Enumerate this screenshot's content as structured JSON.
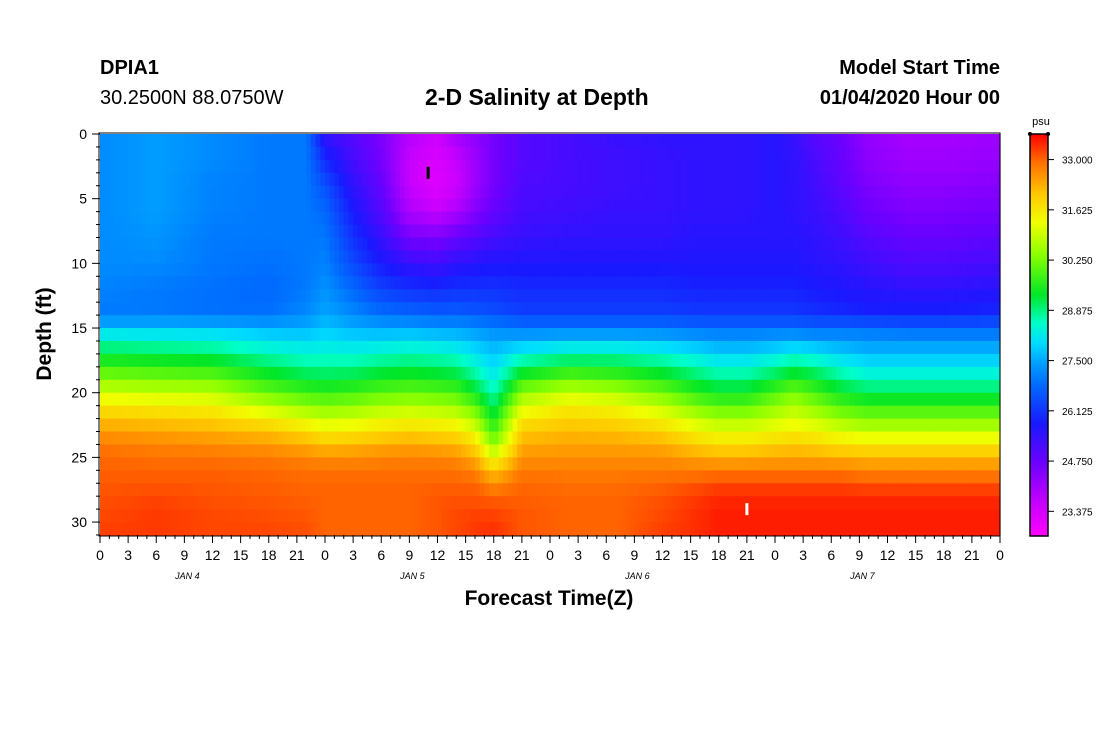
{
  "header": {
    "station_id": "DPIA1",
    "coordinates": "30.2500N 88.0750W",
    "title": "2-D Salinity at Depth",
    "model_start_label": "Model Start Time",
    "model_start_value": "01/04/2020 Hour 00"
  },
  "chart_data": {
    "type": "heatmap",
    "title": "2-D Salinity at Depth",
    "xlabel": "Forecast Time(Z)",
    "ylabel": "Depth (ft)",
    "x_tick_labels": [
      "0",
      "3",
      "6",
      "9",
      "12",
      "15",
      "18",
      "21",
      "0",
      "3",
      "6",
      "9",
      "12",
      "15",
      "18",
      "21",
      "0",
      "3",
      "6",
      "9",
      "12",
      "15",
      "18",
      "21",
      "0",
      "3",
      "6",
      "9",
      "12",
      "15",
      "18",
      "21",
      "0"
    ],
    "date_labels": [
      {
        "label": "JAN 4",
        "hour": 9
      },
      {
        "label": "JAN 5",
        "hour": 33
      },
      {
        "label": "JAN 6",
        "hour": 57
      },
      {
        "label": "JAN 7",
        "hour": 81
      }
    ],
    "xlim_hours": [
      0,
      96
    ],
    "ylim_ft": [
      0,
      31
    ],
    "y_ticks": [
      "0",
      "5",
      "10",
      "15",
      "20",
      "25",
      "30"
    ],
    "colorbar": {
      "unit": "psu",
      "range": [
        22.7,
        33.7
      ],
      "tick_labels": [
        "33.000",
        "31.625",
        "30.250",
        "28.875",
        "27.500",
        "26.125",
        "24.750",
        "23.375"
      ]
    },
    "markers": [
      {
        "hour": 35,
        "depth_ft": 3,
        "color": "#000000"
      },
      {
        "hour": 69,
        "depth_ft": 29,
        "color": "#ffffff"
      }
    ],
    "profiles": {
      "hours": [
        0,
        6,
        12,
        18,
        22,
        24,
        27,
        30,
        33,
        36,
        38,
        40,
        42,
        45,
        50,
        55,
        60,
        64,
        66,
        69,
        72,
        74,
        76,
        79,
        82,
        86,
        90,
        96
      ],
      "depths_ft": [
        0,
        2,
        4,
        6,
        8,
        10,
        12,
        14,
        15,
        16,
        17,
        18,
        19,
        20,
        21,
        22,
        23,
        24,
        25,
        26,
        27,
        28,
        29,
        30,
        31
      ],
      "salinity_psu": [
        [
          27.2,
          27.2,
          27.2,
          27.2,
          27.2,
          27.2,
          27.1,
          27.0,
          27.8,
          28.6,
          29.2,
          29.8,
          30.4,
          31.0,
          31.6,
          32.1,
          32.5,
          32.8,
          33.0,
          33.0,
          33.1,
          33.1,
          33.2,
          33.2,
          33.3
        ],
        [
          27.4,
          27.4,
          27.4,
          27.4,
          27.3,
          27.2,
          27.0,
          27.0,
          27.8,
          28.5,
          29.1,
          29.7,
          30.3,
          30.9,
          31.5,
          32.0,
          32.4,
          32.7,
          32.9,
          33.0,
          33.1,
          33.2,
          33.3,
          33.3,
          33.3
        ],
        [
          27.2,
          27.2,
          27.1,
          27.1,
          27.0,
          27.0,
          26.9,
          26.9,
          27.8,
          28.4,
          29.0,
          29.6,
          30.2,
          30.8,
          31.4,
          31.9,
          32.3,
          32.6,
          32.9,
          33.0,
          33.1,
          33.1,
          33.2,
          33.2,
          33.2
        ],
        [
          27.0,
          27.0,
          27.0,
          27.0,
          27.0,
          26.9,
          26.8,
          26.9,
          27.6,
          28.1,
          28.6,
          29.1,
          29.6,
          30.1,
          30.8,
          31.5,
          32.1,
          32.5,
          32.8,
          33.0,
          33.0,
          33.1,
          33.1,
          33.2,
          33.2
        ],
        [
          27.0,
          27.0,
          27.0,
          27.0,
          27.0,
          27.0,
          27.0,
          27.2,
          27.6,
          28.0,
          28.4,
          28.8,
          29.3,
          29.8,
          30.4,
          31.1,
          31.8,
          32.3,
          32.7,
          32.9,
          33.0,
          33.0,
          33.1,
          33.1,
          33.2
        ],
        [
          25.4,
          26.0,
          26.5,
          26.8,
          27.0,
          27.1,
          27.3,
          27.5,
          27.8,
          28.1,
          28.4,
          28.8,
          29.2,
          29.7,
          30.3,
          30.9,
          31.5,
          32.1,
          32.6,
          32.9,
          33.0,
          33.0,
          33.0,
          33.0,
          33.0
        ],
        [
          25.0,
          25.2,
          25.5,
          25.8,
          26.1,
          26.4,
          26.8,
          27.2,
          27.6,
          28.0,
          28.4,
          28.8,
          29.3,
          29.8,
          30.4,
          31.0,
          31.6,
          32.2,
          32.6,
          32.9,
          33.0,
          33.0,
          33.0,
          33.0,
          33.0
        ],
        [
          24.5,
          24.6,
          24.8,
          25.0,
          25.4,
          25.8,
          26.3,
          26.9,
          27.5,
          28.0,
          28.5,
          29.0,
          29.5,
          30.0,
          30.6,
          31.2,
          31.8,
          32.3,
          32.7,
          32.9,
          33.0,
          33.0,
          33.0,
          33.0,
          33.0
        ],
        [
          23.8,
          23.6,
          23.6,
          23.9,
          24.6,
          25.4,
          26.1,
          26.8,
          27.5,
          28.1,
          28.6,
          29.1,
          29.6,
          30.1,
          30.7,
          31.3,
          31.9,
          32.4,
          32.7,
          32.9,
          33.0,
          33.0,
          33.0,
          33.0,
          33.0
        ],
        [
          23.5,
          23.3,
          23.2,
          23.6,
          24.5,
          25.3,
          26.0,
          26.7,
          27.4,
          28.0,
          28.5,
          29.0,
          29.5,
          30.0,
          30.6,
          31.2,
          31.8,
          32.3,
          32.7,
          32.9,
          33.0,
          33.1,
          33.1,
          33.1,
          33.1
        ],
        [
          24.0,
          23.6,
          23.5,
          23.9,
          24.8,
          25.5,
          26.1,
          26.7,
          27.4,
          27.9,
          28.4,
          28.9,
          29.4,
          29.9,
          30.5,
          31.1,
          31.7,
          32.2,
          32.6,
          32.9,
          33.0,
          33.1,
          33.2,
          33.2,
          33.2
        ],
        [
          24.3,
          24.1,
          24.1,
          24.4,
          25.0,
          25.6,
          26.1,
          26.6,
          27.3,
          27.7,
          28.1,
          28.5,
          28.9,
          29.4,
          30.0,
          30.6,
          31.2,
          31.8,
          32.3,
          32.7,
          33.0,
          33.1,
          33.2,
          33.3,
          33.3
        ],
        [
          24.6,
          24.6,
          24.6,
          24.8,
          25.2,
          25.7,
          26.1,
          26.5,
          27.2,
          27.5,
          27.8,
          28.0,
          28.3,
          28.6,
          29.0,
          29.4,
          29.8,
          30.4,
          31.2,
          32.0,
          32.6,
          33.0,
          33.2,
          33.3,
          33.4
        ],
        [
          25.0,
          25.0,
          25.1,
          25.2,
          25.4,
          25.7,
          26.0,
          26.3,
          27.0,
          27.6,
          28.3,
          29.0,
          29.7,
          30.4,
          31.0,
          31.6,
          32.0,
          32.3,
          32.6,
          32.8,
          33.0,
          33.0,
          33.1,
          33.1,
          33.1
        ],
        [
          25.2,
          25.2,
          25.2,
          25.3,
          25.5,
          25.7,
          26.0,
          26.3,
          27.0,
          27.8,
          28.6,
          29.4,
          30.2,
          30.9,
          31.5,
          31.9,
          32.2,
          32.4,
          32.6,
          32.8,
          32.9,
          33.0,
          33.0,
          33.0,
          33.0
        ],
        [
          25.4,
          25.3,
          25.3,
          25.4,
          25.5,
          25.7,
          26.0,
          26.3,
          27.0,
          27.8,
          28.6,
          29.3,
          30.0,
          30.7,
          31.3,
          31.8,
          32.1,
          32.4,
          32.6,
          32.8,
          32.9,
          33.0,
          33.0,
          33.0,
          33.0
        ],
        [
          25.5,
          25.4,
          25.4,
          25.4,
          25.5,
          25.7,
          26.0,
          26.3,
          27.0,
          27.7,
          28.4,
          29.0,
          29.6,
          30.2,
          30.8,
          31.4,
          31.9,
          32.3,
          32.6,
          32.8,
          33.0,
          33.1,
          33.2,
          33.2,
          33.3
        ],
        [
          25.5,
          25.5,
          25.5,
          25.5,
          25.6,
          25.7,
          25.9,
          26.2,
          26.9,
          27.5,
          28.1,
          28.6,
          29.1,
          29.6,
          30.2,
          30.8,
          31.4,
          31.9,
          32.4,
          32.8,
          33.1,
          33.3,
          33.4,
          33.4,
          33.4
        ],
        [
          25.5,
          25.5,
          25.5,
          25.5,
          25.6,
          25.7,
          25.9,
          26.2,
          26.9,
          27.4,
          27.9,
          28.4,
          28.9,
          29.4,
          30.0,
          30.6,
          31.2,
          31.8,
          32.3,
          32.8,
          33.2,
          33.4,
          33.5,
          33.5,
          33.5
        ],
        [
          25.5,
          25.5,
          25.5,
          25.5,
          25.6,
          25.7,
          25.9,
          26.2,
          26.9,
          27.4,
          27.9,
          28.4,
          28.9,
          29.4,
          30.0,
          30.6,
          31.2,
          31.8,
          32.3,
          32.8,
          33.2,
          33.4,
          33.5,
          33.5,
          33.5
        ],
        [
          25.6,
          25.6,
          25.6,
          25.6,
          25.6,
          25.7,
          25.9,
          26.2,
          26.9,
          27.5,
          28.1,
          28.7,
          29.3,
          29.9,
          30.4,
          30.9,
          31.4,
          31.9,
          32.4,
          32.8,
          33.2,
          33.4,
          33.5,
          33.5,
          33.5
        ],
        [
          25.4,
          25.5,
          25.5,
          25.5,
          25.6,
          25.7,
          25.9,
          26.2,
          26.9,
          27.6,
          28.3,
          29.0,
          29.6,
          30.2,
          30.7,
          31.1,
          31.5,
          32.0,
          32.4,
          32.8,
          33.2,
          33.4,
          33.5,
          33.5,
          33.5
        ],
        [
          25.0,
          25.2,
          25.3,
          25.4,
          25.5,
          25.6,
          25.8,
          26.1,
          26.8,
          27.5,
          28.2,
          28.8,
          29.4,
          29.9,
          30.4,
          30.9,
          31.4,
          31.9,
          32.4,
          32.8,
          33.2,
          33.4,
          33.5,
          33.5,
          33.5
        ],
        [
          24.7,
          24.8,
          24.9,
          25.1,
          25.3,
          25.5,
          25.7,
          26.0,
          26.9,
          27.4,
          27.9,
          28.4,
          28.9,
          29.4,
          29.9,
          30.5,
          31.1,
          31.7,
          32.3,
          32.8,
          33.2,
          33.4,
          33.5,
          33.5,
          33.5
        ],
        [
          24.2,
          24.3,
          24.5,
          24.7,
          25.0,
          25.3,
          25.6,
          25.9,
          26.9,
          27.3,
          27.7,
          28.1,
          28.6,
          29.1,
          29.7,
          30.3,
          30.9,
          31.6,
          32.2,
          32.7,
          33.1,
          33.4,
          33.5,
          33.5,
          33.5
        ],
        [
          24.0,
          24.1,
          24.3,
          24.5,
          24.8,
          25.1,
          25.5,
          25.9,
          26.8,
          27.3,
          27.7,
          28.1,
          28.6,
          29.1,
          29.7,
          30.3,
          30.9,
          31.6,
          32.2,
          32.7,
          33.1,
          33.4,
          33.5,
          33.5,
          33.5
        ],
        [
          24.0,
          24.1,
          24.3,
          24.5,
          24.8,
          25.1,
          25.5,
          25.9,
          26.8,
          27.3,
          27.7,
          28.1,
          28.6,
          29.1,
          29.7,
          30.3,
          30.9,
          31.6,
          32.2,
          32.7,
          33.1,
          33.4,
          33.5,
          33.5,
          33.5
        ],
        [
          24.1,
          24.2,
          24.4,
          24.6,
          24.9,
          25.2,
          25.6,
          26.0,
          26.8,
          27.3,
          27.7,
          28.1,
          28.6,
          29.1,
          29.7,
          30.3,
          30.9,
          31.6,
          32.2,
          32.7,
          33.1,
          33.4,
          33.5,
          33.5,
          33.5
        ]
      ]
    }
  }
}
